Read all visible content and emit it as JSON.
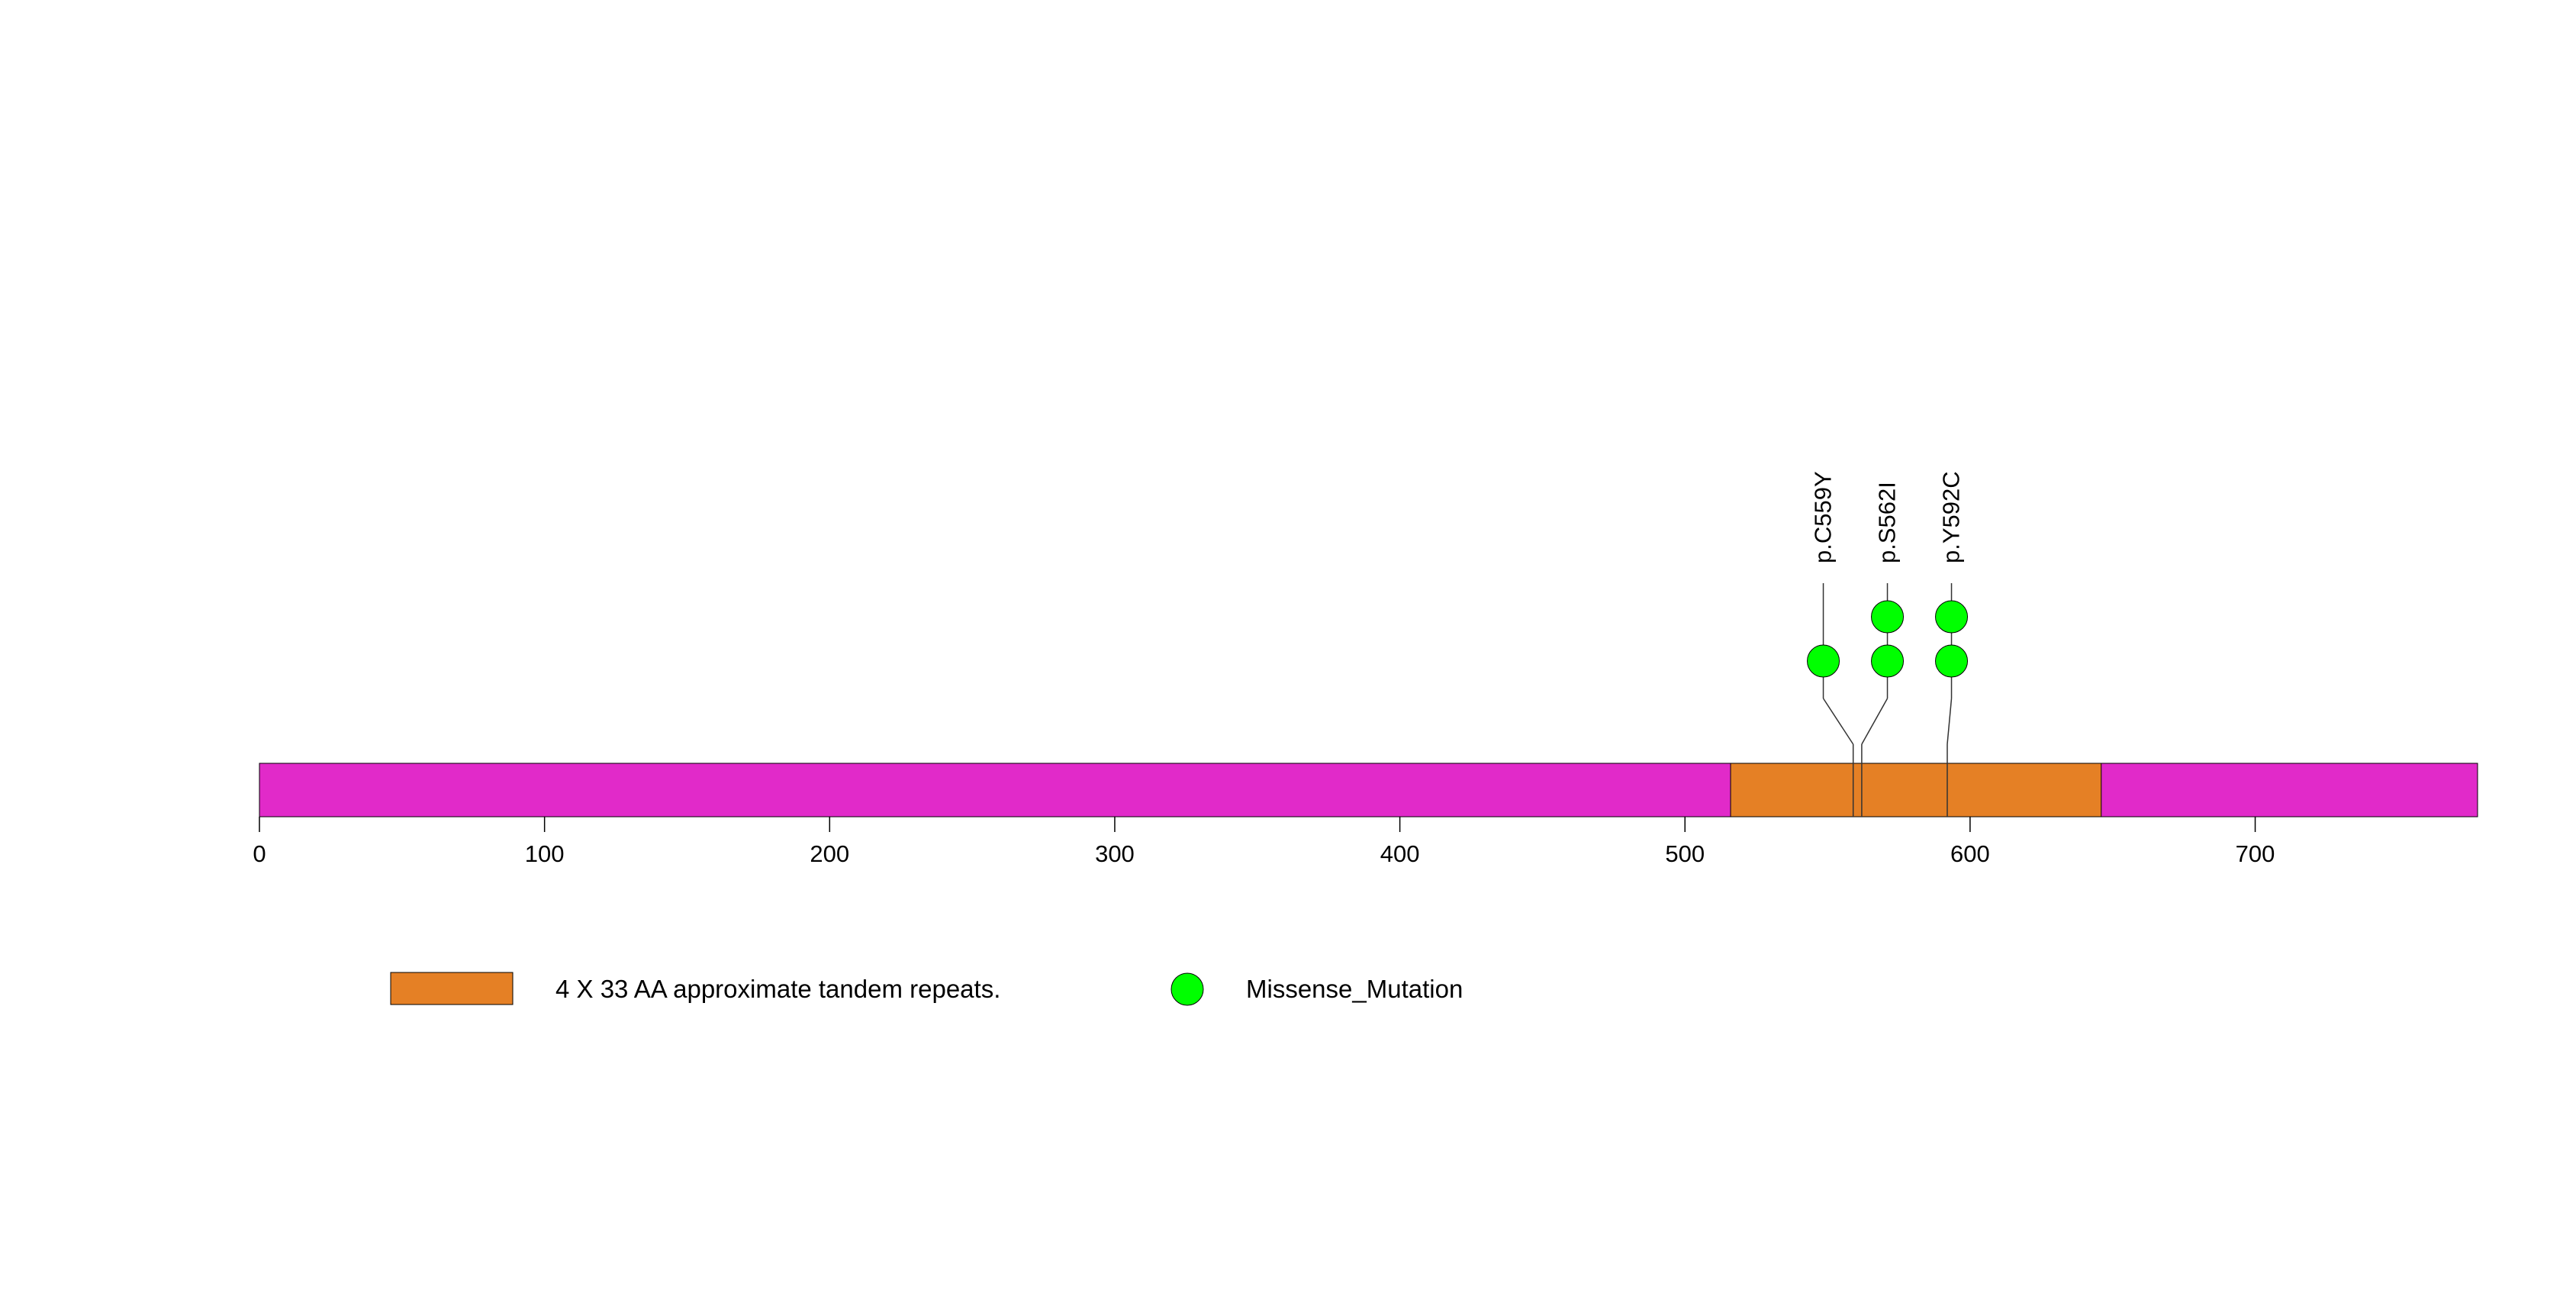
{
  "chart_data": {
    "type": "lollipop",
    "protein_length": 778,
    "xlim": [
      0,
      778
    ],
    "x_ticks": [
      0,
      100,
      200,
      300,
      400,
      500,
      600,
      700
    ],
    "x_tick_labels": [
      "0",
      "100",
      "200",
      "300",
      "400",
      "500",
      "600",
      "700"
    ],
    "protein_color": "#E12AC9",
    "domains": [
      {
        "name": "4 X 33 AA approximate tandem repeats.",
        "start": 516,
        "end": 646,
        "color": "#E58025"
      }
    ],
    "mutations": [
      {
        "label": "p.C559Y",
        "position": 559,
        "count": 1,
        "type": "Missense_Mutation"
      },
      {
        "label": "p.S562I",
        "position": 562,
        "count": 2,
        "type": "Missense_Mutation"
      },
      {
        "label": "p.Y592C",
        "position": 592,
        "count": 2,
        "type": "Missense_Mutation"
      }
    ],
    "mutation_colors": {
      "Missense_Mutation": "#00FF00"
    },
    "legend": [
      {
        "kind": "domain",
        "label": "4 X 33 AA approximate tandem repeats.",
        "color": "#E58025"
      },
      {
        "kind": "mutation",
        "label": "Missense_Mutation",
        "color": "#00FF00"
      }
    ]
  }
}
